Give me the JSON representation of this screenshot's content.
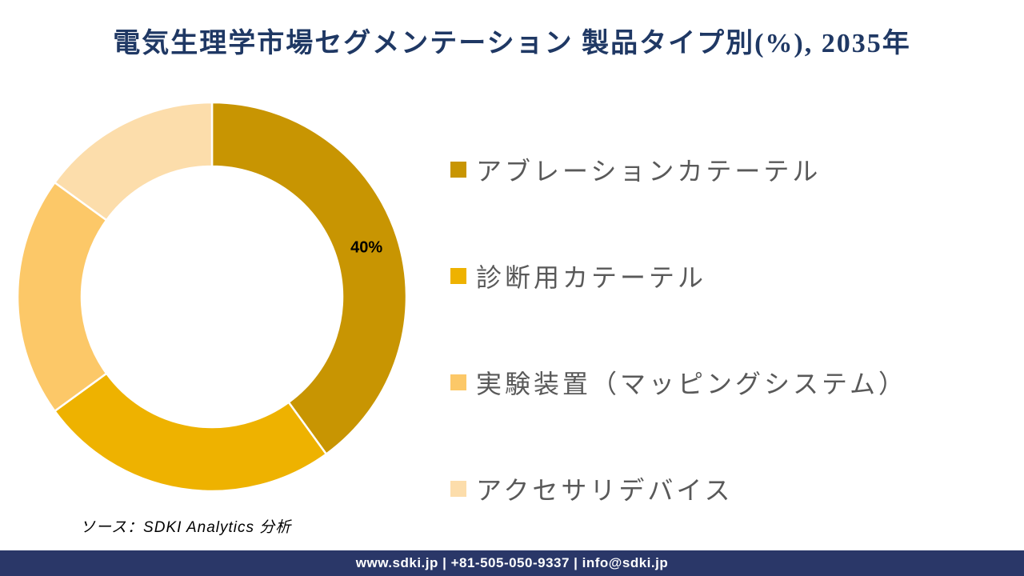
{
  "title": "電気生理学市場セグメンテーション 製品タイプ別(%), 2035年",
  "chart_data": {
    "type": "pie",
    "subtype": "donut",
    "title": "電気生理学市場セグメンテーション 製品タイプ別(%), 2035年",
    "unit": "%",
    "start_angle_deg": 0,
    "direction": "clockwise",
    "inner_radius_ratio": 0.67,
    "legend_position": "right",
    "slices": [
      {
        "label": "アブレーションカテーテル",
        "value": 40,
        "color": "#C89502",
        "data_label": "40%"
      },
      {
        "label": "診断用カテーテル",
        "value": 25,
        "color": "#EEB200",
        "data_label": ""
      },
      {
        "label": "実験装置（マッピングシステム）",
        "value": 20,
        "color": "#FCC868",
        "data_label": ""
      },
      {
        "label": "アクセサリデバイス",
        "value": 15,
        "color": "#FCDDAB",
        "data_label": ""
      }
    ]
  },
  "source_note": "ソース：SDKI Analytics 分析",
  "footer": {
    "text": "www.sdki.jp | +81-505-050-9337 | info@sdki.jp",
    "background": "#2A3768"
  },
  "colors": {
    "title": "#1F3864",
    "legend_text": "#595959",
    "footer_bar": "#2A3768",
    "slice_divider": "#FFFFFF",
    "data_label": "#000000"
  }
}
